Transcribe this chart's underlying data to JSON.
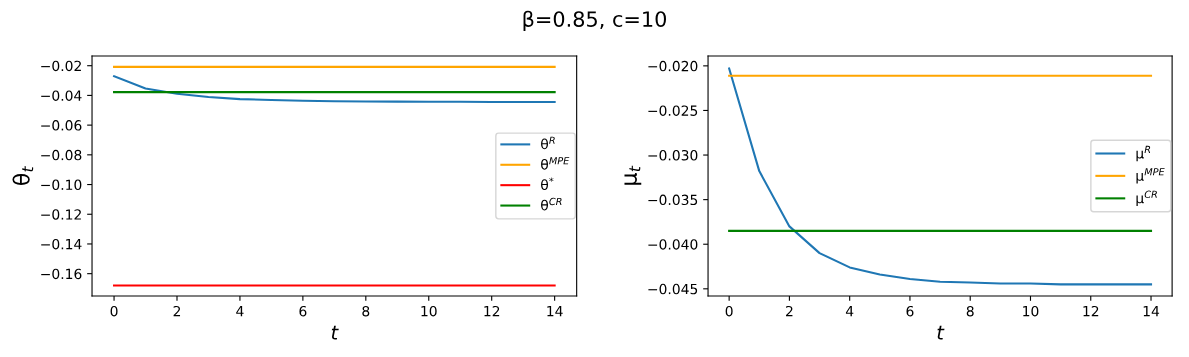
{
  "chart_data": [
    {
      "type": "line",
      "title": "β=0.85, c=10",
      "xlabel": "t",
      "ylabel": "θ$_{t}$",
      "x": [
        0,
        1,
        2,
        3,
        4,
        5,
        6,
        7,
        8,
        9,
        10,
        11,
        12,
        13,
        14
      ],
      "xlim": [
        -0.7,
        14.7
      ],
      "xticks": [
        0,
        2,
        4,
        6,
        8,
        10,
        12,
        14
      ],
      "ylim": [
        -0.175,
        -0.0135
      ],
      "yticks": [
        -0.16,
        -0.14,
        -0.12,
        {
          "value": -0.1,
          "label": "−0.10"
        },
        -0.08,
        -0.06,
        -0.04,
        -0.02
      ],
      "legend": "right",
      "grid": false,
      "series": [
        {
          "name": "θ$^{R}$",
          "color": "#1f77b4",
          "values": [
            -0.0271,
            -0.0353,
            -0.0389,
            -0.0411,
            -0.0425,
            -0.0431,
            -0.0436,
            -0.0439,
            -0.0441,
            -0.0442,
            -0.0443,
            -0.0443,
            -0.0444,
            -0.0444,
            -0.0444
          ]
        },
        {
          "name": "θ$^{MPE}$",
          "color": "#ffa500",
          "values": [
            -0.0208,
            -0.0208,
            -0.0208,
            -0.0208,
            -0.0208,
            -0.0208,
            -0.0208,
            -0.0208,
            -0.0208,
            -0.0208,
            -0.0208,
            -0.0208,
            -0.0208,
            -0.0208,
            -0.0208
          ]
        },
        {
          "name": "θ$^{*}$",
          "color": "#ff0000",
          "values": [
            -0.168,
            -0.168,
            -0.168,
            -0.168,
            -0.168,
            -0.168,
            -0.168,
            -0.168,
            -0.168,
            -0.168,
            -0.168,
            -0.168,
            -0.168,
            -0.168,
            -0.168
          ]
        },
        {
          "name": "θ$^{CR}$",
          "color": "#008000",
          "values": [
            -0.0378,
            -0.0378,
            -0.0378,
            -0.0378,
            -0.0378,
            -0.0378,
            -0.0378,
            -0.0378,
            -0.0378,
            -0.0378,
            -0.0378,
            -0.0378,
            -0.0378,
            -0.0378,
            -0.0378
          ]
        }
      ]
    },
    {
      "type": "line",
      "xlabel": "t",
      "ylabel": "μ$_{t}$",
      "x": [
        0,
        1,
        2,
        3,
        4,
        5,
        6,
        7,
        8,
        9,
        10,
        11,
        12,
        13,
        14
      ],
      "xlim": [
        -0.7,
        14.7
      ],
      "xticks": [
        0,
        2,
        4,
        6,
        8,
        10,
        12,
        14
      ],
      "ylim": [
        -0.0458,
        -0.0189
      ],
      "yticks": [
        -0.045,
        {
          "value": -0.04,
          "label": "−0.040"
        },
        -0.035,
        {
          "value": -0.03,
          "label": "−0.030"
        },
        -0.025,
        {
          "value": -0.02,
          "label": "−0.020"
        }
      ],
      "legend": "right",
      "grid": false,
      "series": [
        {
          "name": "μ$^{R}$",
          "color": "#1f77b4",
          "values": [
            -0.0203,
            -0.0318,
            -0.038,
            -0.041,
            -0.0426,
            -0.0434,
            -0.0439,
            -0.0442,
            -0.0443,
            -0.0444,
            -0.0444,
            -0.0445,
            -0.0445,
            -0.0445,
            -0.0445
          ]
        },
        {
          "name": "μ$^{MPE}$",
          "color": "#ffa500",
          "values": [
            -0.0211,
            -0.0211,
            -0.0211,
            -0.0211,
            -0.0211,
            -0.0211,
            -0.0211,
            -0.0211,
            -0.0211,
            -0.0211,
            -0.0211,
            -0.0211,
            -0.0211,
            -0.0211,
            -0.0211
          ]
        },
        {
          "name": "μ$^{CR}$",
          "color": "#008000",
          "values": [
            -0.0385,
            -0.0385,
            -0.0385,
            -0.0385,
            -0.0385,
            -0.0385,
            -0.0385,
            -0.0385,
            -0.0385,
            -0.0385,
            -0.0385,
            -0.0385,
            -0.0385,
            -0.0385,
            -0.0385
          ]
        }
      ]
    }
  ]
}
